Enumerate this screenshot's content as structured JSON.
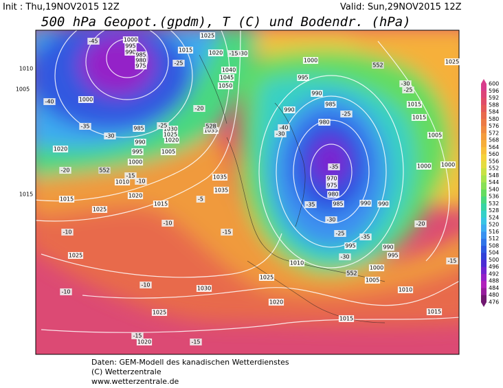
{
  "header": {
    "init": "Init : Thu,19NOV2015 12Z",
    "valid": "Valid: Sun,29NOV2015 12Z",
    "title": "500 hPa Geopot.(gpdm), T (C) und Bodendr. (hPa)"
  },
  "colorbar": {
    "levels": [
      600,
      596,
      592,
      588,
      584,
      580,
      576,
      572,
      568,
      564,
      560,
      556,
      552,
      548,
      544,
      540,
      536,
      532,
      528,
      524,
      520,
      516,
      512,
      508,
      504,
      500,
      496,
      492,
      488,
      484,
      480,
      476
    ],
    "colors": [
      "#d83c8c",
      "#dc4478",
      "#e04c68",
      "#e45a58",
      "#e86a4c",
      "#ec7a44",
      "#f08a40",
      "#f49c3c",
      "#f6ae3a",
      "#f8c03a",
      "#f4d23c",
      "#e4dc40",
      "#c8e244",
      "#a8e44c",
      "#88e056",
      "#64dc60",
      "#48d880",
      "#38d4a4",
      "#34d0c8",
      "#38c4e4",
      "#3cacf0",
      "#3890f0",
      "#3074e8",
      "#2c58e0",
      "#3040d8",
      "#4c2cd4",
      "#7024d0",
      "#9420c8",
      "#b020bc",
      "#961c9c",
      "#701870"
    ]
  },
  "map": {
    "pressure_labels": [
      "1010",
      "1005",
      "1000",
      "1000",
      "995",
      "990",
      "985",
      "980",
      "975",
      "985",
      "990",
      "995",
      "1000",
      "1020",
      "1010",
      "1015",
      "1015",
      "1025",
      "1020",
      "1015",
      "1035",
      "1035",
      "1030",
      "1025",
      "1020",
      "1005",
      "1035",
      "1030",
      "1020",
      "1040",
      "1045",
      "1050",
      "1015",
      "1025",
      "1000",
      "995",
      "990",
      "985",
      "990",
      "980",
      "970",
      "975",
      "980",
      "985",
      "990",
      "990",
      "995",
      "990",
      "995",
      "1000",
      "1005",
      "1010",
      "1025",
      "1020",
      "1015",
      "1010",
      "1015",
      "1025",
      "1030",
      "1025",
      "1020",
      "1015",
      "1005",
      "1000",
      "1000",
      "1025",
      "1015"
    ],
    "temperature_labels": [
      "-45",
      "-40",
      "-35",
      "-30",
      "-25",
      "-25",
      "-20",
      "-15",
      "-40",
      "-30",
      "-25",
      "-30",
      "-25",
      "-35",
      "-35",
      "-30",
      "-25",
      "-35",
      "-30",
      "-20",
      "-15",
      "-10",
      "-5",
      "-10",
      "-15",
      "-10",
      "-10",
      "-10",
      "-15",
      "-15",
      "-20",
      "-15"
    ],
    "height_labels": [
      "552",
      "552",
      "552",
      "528"
    ]
  },
  "footer": {
    "source": "Daten: GEM-Modell des kanadischen Wetterdienstes",
    "copyright": "(C) Wetterzentrale",
    "url": "www.wetterzentrale.de"
  }
}
